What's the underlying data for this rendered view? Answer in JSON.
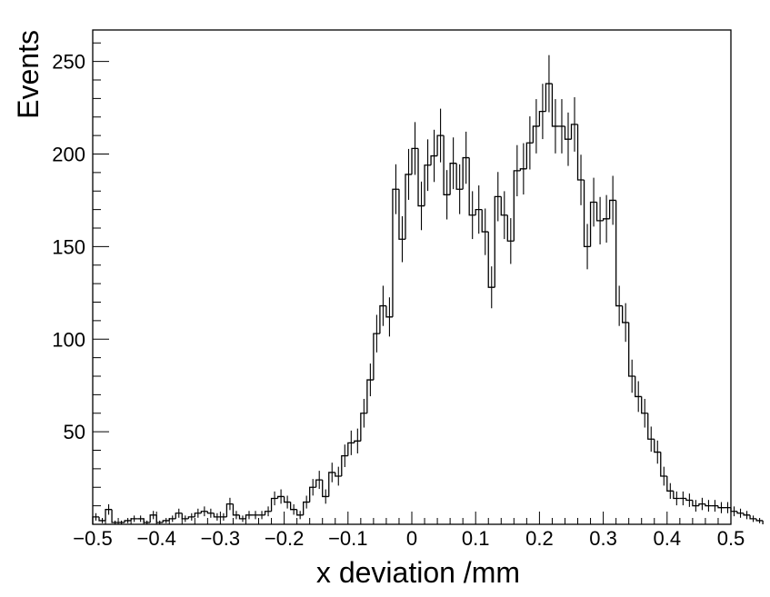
{
  "chart_data": {
    "type": "histogram",
    "xlabel": "x deviation /mm",
    "ylabel": "Events",
    "xlim": [
      -0.5,
      0.5
    ],
    "ylim": [
      0,
      267
    ],
    "grid": false,
    "legend": "none",
    "line_color": "#000000",
    "x_ticks": [
      -0.5,
      -0.4,
      -0.3,
      -0.2,
      -0.1,
      0,
      0.1,
      0.2,
      0.3,
      0.4,
      0.5
    ],
    "x_tick_labels": [
      "−0.5",
      "−0.4",
      "−0.3",
      "−0.2",
      "−0.1",
      "0",
      "0.1",
      "0.2",
      "0.3",
      "0.4",
      "0.5"
    ],
    "y_ticks": [
      50,
      100,
      150,
      200,
      250
    ],
    "y_tick_labels": [
      "50",
      "100",
      "150",
      "200",
      "250"
    ],
    "bin_width": 0.01,
    "bin_start": -0.5,
    "values": [
      4,
      2,
      8,
      1,
      1,
      2,
      3,
      3,
      1,
      5,
      1,
      2,
      3,
      6,
      3,
      4,
      6,
      7,
      6,
      4,
      4,
      11,
      5,
      3,
      5,
      5,
      5,
      7,
      14,
      15,
      12,
      8,
      5,
      12,
      20,
      24,
      15,
      28,
      26,
      37,
      44,
      45,
      60,
      78,
      103,
      118,
      112,
      181,
      154,
      189,
      203,
      172,
      194,
      199,
      210,
      178,
      195,
      181,
      198,
      167,
      170,
      158,
      128,
      177,
      167,
      153,
      191,
      192,
      206,
      215,
      223,
      238,
      215,
      215,
      208,
      216,
      186,
      150,
      174,
      164,
      165,
      175,
      118,
      109,
      80,
      69,
      60,
      46,
      39,
      26,
      18,
      14,
      14,
      13,
      10,
      11,
      10,
      10,
      9,
      9,
      7,
      6,
      5,
      3,
      2
    ]
  }
}
